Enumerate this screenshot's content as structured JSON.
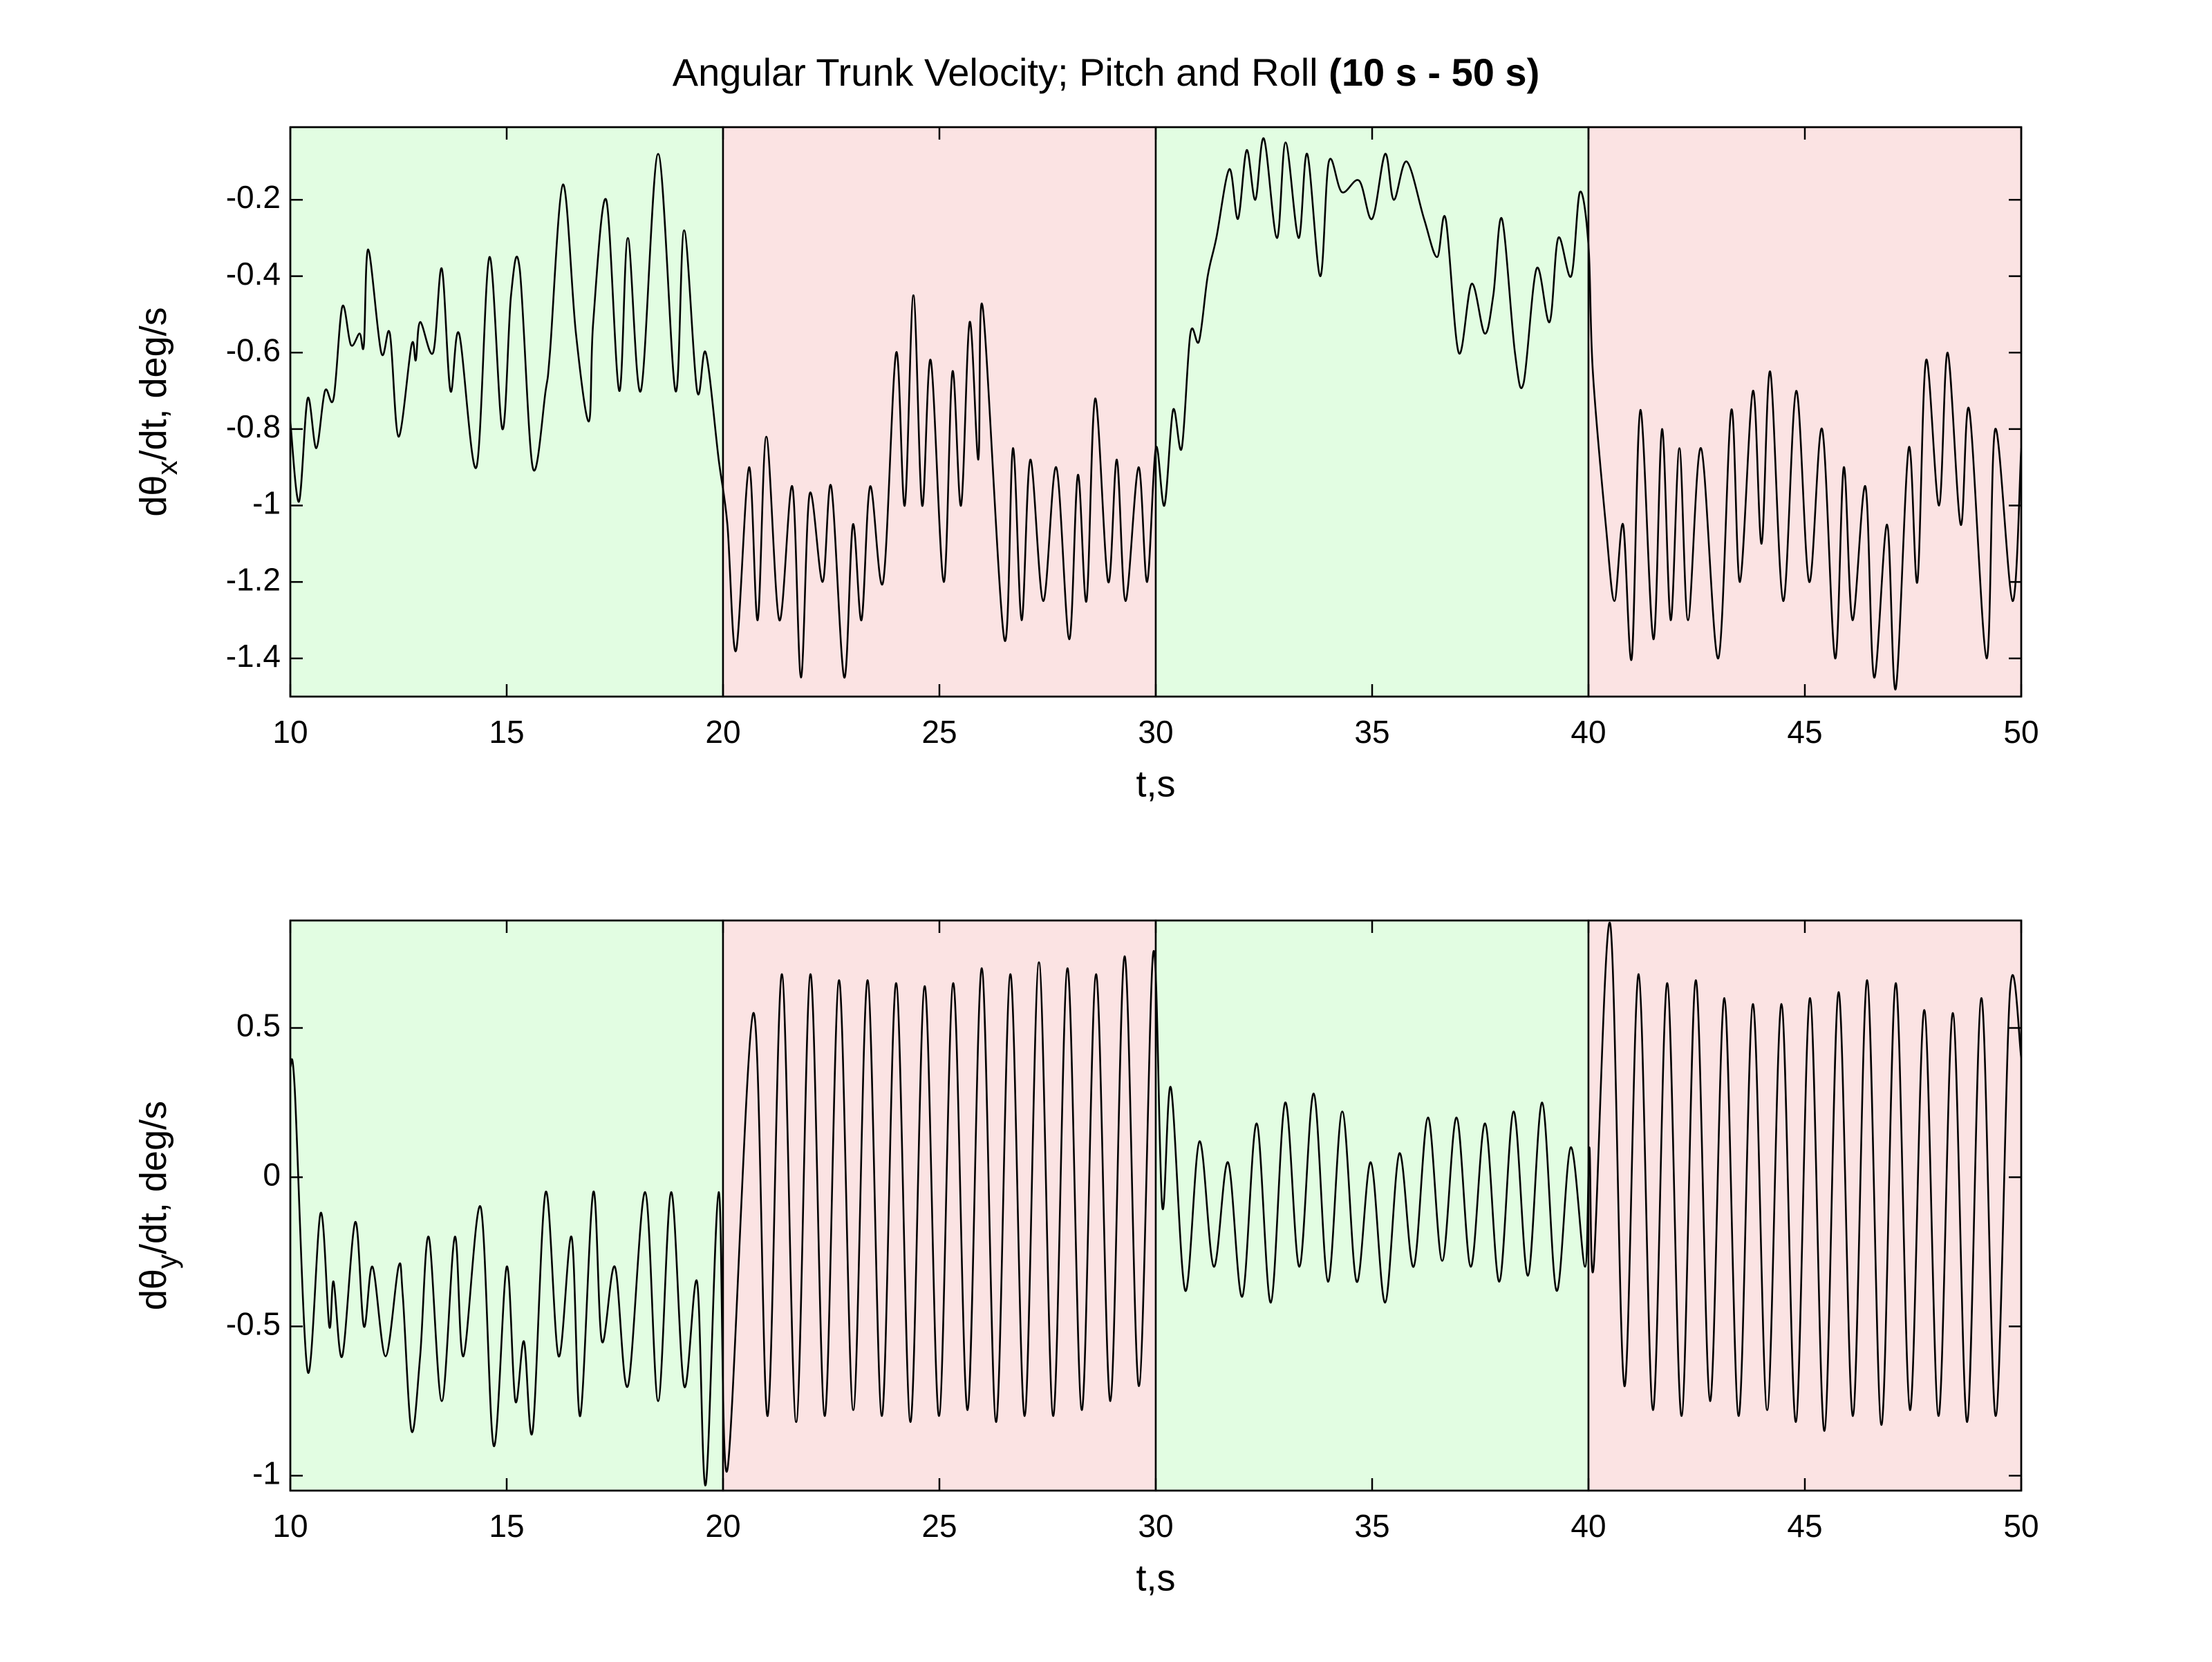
{
  "title": {
    "text": "Angular Trunk Velocity; Pitch and Roll",
    "bold": "(10 s - 50 s)"
  },
  "chart_data": [
    {
      "type": "line",
      "xlabel": "t,s",
      "ylabel": {
        "text": "dθ",
        "sub": "x",
        "rest": "/dt, deg/s"
      },
      "xlim": [
        10,
        50
      ],
      "xticks": [
        10,
        15,
        20,
        25,
        30,
        35,
        40,
        45,
        50
      ],
      "ylim": [
        -1.5,
        -0.01
      ],
      "yticks": [
        -1.4,
        -1.2,
        -1,
        -0.8,
        -0.6,
        -0.4,
        -0.2
      ],
      "regions": [
        {
          "x": [
            10,
            20
          ],
          "color": "#e2fde2"
        },
        {
          "x": [
            20,
            30
          ],
          "color": "#fbe3e3"
        },
        {
          "x": [
            30,
            40
          ],
          "color": "#e2fde2"
        },
        {
          "x": [
            40,
            50
          ],
          "color": "#fbe3e3"
        }
      ],
      "color": "#000000",
      "x": [
        10,
        10.2,
        10.4,
        10.6,
        10.8,
        11,
        11.2,
        11.4,
        11.6,
        11.7,
        11.8,
        12.1,
        12.3,
        12.5,
        12.8,
        12.9,
        13,
        13.3,
        13.5,
        13.7,
        13.9,
        14.3,
        14.6,
        14.9,
        15.1,
        15.3,
        15.6,
        15.9,
        16,
        16.3,
        16.6,
        16.9,
        17,
        17.3,
        17.6,
        17.8,
        18.1,
        18.5,
        18.9,
        19.1,
        19.4,
        19.6,
        19.9,
        20.1,
        20.3,
        20.6,
        20.8,
        21,
        21.3,
        21.6,
        21.8,
        22,
        22.3,
        22.5,
        22.8,
        23,
        23.2,
        23.4,
        23.7,
        24,
        24.2,
        24.4,
        24.6,
        24.8,
        25.1,
        25.3,
        25.5,
        25.7,
        25.9,
        26,
        26.5,
        26.7,
        26.9,
        27.1,
        27.4,
        27.7,
        28,
        28.2,
        28.4,
        28.6,
        28.9,
        29.1,
        29.3,
        29.6,
        29.8,
        30,
        30.2,
        30.4,
        30.6,
        30.8,
        31,
        31.2,
        31.4,
        31.7,
        31.9,
        32.1,
        32.3,
        32.5,
        32.8,
        33,
        33.3,
        33.5,
        33.8,
        34,
        34.3,
        34.7,
        35,
        35.3,
        35.5,
        35.8,
        36.2,
        36.5,
        36.7,
        37,
        37.3,
        37.6,
        37.8,
        38,
        38.3,
        38.5,
        38.8,
        39.1,
        39.3,
        39.6,
        39.8,
        40,
        40.1,
        40.4,
        40.6,
        40.8,
        41,
        41.2,
        41.5,
        41.7,
        41.9,
        42.1,
        42.3,
        42.6,
        43,
        43.3,
        43.5,
        43.8,
        44,
        44.2,
        44.5,
        44.8,
        45.1,
        45.4,
        45.7,
        45.9,
        46.1,
        46.4,
        46.6,
        46.9,
        47.1,
        47.4,
        47.6,
        47.8,
        48.1,
        48.3,
        48.6,
        48.8,
        49.2,
        49.4,
        49.8,
        50
      ],
      "values": [
        -0.78,
        -0.99,
        -0.72,
        -0.85,
        -0.7,
        -0.72,
        -0.48,
        -0.58,
        -0.55,
        -0.58,
        -0.33,
        -0.6,
        -0.55,
        -0.82,
        -0.58,
        -0.62,
        -0.52,
        -0.6,
        -0.38,
        -0.7,
        -0.55,
        -0.9,
        -0.35,
        -0.8,
        -0.45,
        -0.38,
        -0.9,
        -0.7,
        -0.6,
        -0.16,
        -0.55,
        -0.78,
        -0.52,
        -0.2,
        -0.7,
        -0.3,
        -0.7,
        -0.08,
        -0.7,
        -0.28,
        -0.7,
        -0.6,
        -0.88,
        -1.05,
        -1.38,
        -0.9,
        -1.3,
        -0.82,
        -1.3,
        -0.95,
        -1.45,
        -0.97,
        -1.2,
        -0.95,
        -1.45,
        -1.05,
        -1.3,
        -0.95,
        -1.2,
        -0.6,
        -1,
        -0.45,
        -1,
        -0.62,
        -1.2,
        -0.65,
        -1,
        -0.52,
        -0.88,
        -0.48,
        -1.35,
        -0.85,
        -1.3,
        -0.88,
        -1.25,
        -0.9,
        -1.35,
        -0.92,
        -1.25,
        -0.72,
        -1.2,
        -0.88,
        -1.25,
        -0.9,
        -1.2,
        -0.85,
        -1,
        -0.75,
        -0.85,
        -0.55,
        -0.57,
        -0.4,
        -0.3,
        -0.12,
        -0.25,
        -0.07,
        -0.2,
        -0.04,
        -0.3,
        -0.05,
        -0.3,
        -0.08,
        -0.4,
        -0.1,
        -0.18,
        -0.15,
        -0.25,
        -0.08,
        -0.2,
        -0.1,
        -0.25,
        -0.35,
        -0.25,
        -0.6,
        -0.42,
        -0.55,
        -0.45,
        -0.25,
        -0.6,
        -0.68,
        -0.38,
        -0.52,
        -0.3,
        -0.4,
        -0.18,
        -0.32,
        -0.65,
        -1.05,
        -1.25,
        -1.05,
        -1.4,
        -0.75,
        -1.35,
        -0.8,
        -1.3,
        -0.85,
        -1.3,
        -0.85,
        -1.4,
        -0.75,
        -1.2,
        -0.7,
        -1.1,
        -0.65,
        -1.25,
        -0.7,
        -1.2,
        -0.8,
        -1.4,
        -0.9,
        -1.3,
        -0.95,
        -1.45,
        -1.05,
        -1.48,
        -0.85,
        -1.2,
        -0.62,
        -1,
        -0.6,
        -1.05,
        -0.75,
        -1.4,
        -0.8,
        -1.25,
        -0.85
      ]
    },
    {
      "type": "line",
      "xlabel": "t,s",
      "ylabel": {
        "text": "dθ",
        "sub": "y",
        "rest": "/dt, deg/s"
      },
      "xlim": [
        10,
        50
      ],
      "xticks": [
        10,
        15,
        20,
        25,
        30,
        35,
        40,
        45,
        50
      ],
      "ylim": [
        -1.05,
        0.86
      ],
      "yticks": [
        -1,
        -0.5,
        0,
        0.5
      ],
      "regions": [
        {
          "x": [
            10,
            20
          ],
          "color": "#e2fde2"
        },
        {
          "x": [
            20,
            30
          ],
          "color": "#fbe3e3"
        },
        {
          "x": [
            30,
            40
          ],
          "color": "#e2fde2"
        },
        {
          "x": [
            40,
            50
          ],
          "color": "#fbe3e3"
        }
      ],
      "color": "#000000",
      "x": [
        10,
        10.1,
        10.4,
        10.7,
        10.9,
        11,
        11.2,
        11.5,
        11.7,
        11.9,
        12.2,
        12.5,
        12.6,
        12.8,
        13,
        13.2,
        13.5,
        13.8,
        14,
        14.4,
        14.7,
        15,
        15.2,
        15.4,
        15.6,
        15.9,
        16.2,
        16.5,
        16.7,
        17,
        17.2,
        17.5,
        17.8,
        18.2,
        18.5,
        18.8,
        19.1,
        19.4,
        19.6,
        19.9,
        20.1,
        20.7,
        21.03,
        21.36,
        21.69,
        22.02,
        22.35,
        22.68,
        23.01,
        23.34,
        23.67,
        24,
        24.33,
        24.66,
        24.99,
        25.32,
        25.65,
        25.98,
        26.31,
        26.64,
        26.97,
        27.3,
        27.63,
        27.96,
        28.29,
        28.62,
        28.95,
        29.28,
        29.61,
        29.94,
        30.15,
        30.35,
        30.68,
        31.01,
        31.34,
        31.67,
        32,
        32.33,
        32.66,
        32.99,
        33.32,
        33.65,
        33.98,
        34.31,
        34.64,
        34.97,
        35.3,
        35.63,
        35.96,
        36.29,
        36.62,
        36.95,
        37.28,
        37.61,
        37.94,
        38.27,
        38.6,
        38.93,
        39.26,
        39.59,
        39.92,
        40.02,
        40.12,
        40.5,
        40.83,
        41.16,
        41.49,
        41.82,
        42.15,
        42.48,
        42.81,
        43.14,
        43.47,
        43.8,
        44.13,
        44.46,
        44.79,
        45.12,
        45.45,
        45.78,
        46.11,
        46.44,
        46.77,
        47.1,
        47.43,
        47.76,
        48.09,
        48.42,
        48.75,
        49.08,
        49.41,
        49.74,
        50
      ],
      "values": [
        0.37,
        0.3,
        -0.65,
        -0.12,
        -0.5,
        -0.35,
        -0.6,
        -0.15,
        -0.5,
        -0.3,
        -0.6,
        -0.3,
        -0.4,
        -0.85,
        -0.6,
        -0.2,
        -0.75,
        -0.2,
        -0.6,
        -0.1,
        -0.9,
        -0.3,
        -0.75,
        -0.55,
        -0.85,
        -0.05,
        -0.6,
        -0.2,
        -0.8,
        -0.05,
        -0.55,
        -0.3,
        -0.7,
        -0.05,
        -0.75,
        -0.05,
        -0.7,
        -0.35,
        -1.03,
        -0.05,
        -0.98,
        0.55,
        -0.8,
        0.68,
        -0.82,
        0.68,
        -0.8,
        0.66,
        -0.78,
        0.66,
        -0.8,
        0.65,
        -0.82,
        0.64,
        -0.8,
        0.65,
        -0.78,
        0.7,
        -0.82,
        0.68,
        -0.8,
        0.72,
        -0.8,
        0.7,
        -0.78,
        0.68,
        -0.75,
        0.74,
        -0.7,
        0.75,
        -0.1,
        0.3,
        -0.38,
        0.12,
        -0.3,
        0.05,
        -0.4,
        0.18,
        -0.42,
        0.25,
        -0.3,
        0.28,
        -0.35,
        0.22,
        -0.35,
        0.05,
        -0.42,
        0.08,
        -0.3,
        0.2,
        -0.28,
        0.2,
        -0.3,
        0.18,
        -0.35,
        0.22,
        -0.33,
        0.25,
        -0.38,
        0.1,
        -0.3,
        0.1,
        -0.3,
        0.85,
        -0.7,
        0.68,
        -0.78,
        0.65,
        -0.8,
        0.66,
        -0.75,
        0.6,
        -0.8,
        0.58,
        -0.78,
        0.58,
        -0.82,
        0.6,
        -0.85,
        0.62,
        -0.8,
        0.66,
        -0.83,
        0.65,
        -0.78,
        0.56,
        -0.8,
        0.55,
        -0.82,
        0.6,
        -0.8,
        0.62,
        0.4
      ]
    }
  ]
}
